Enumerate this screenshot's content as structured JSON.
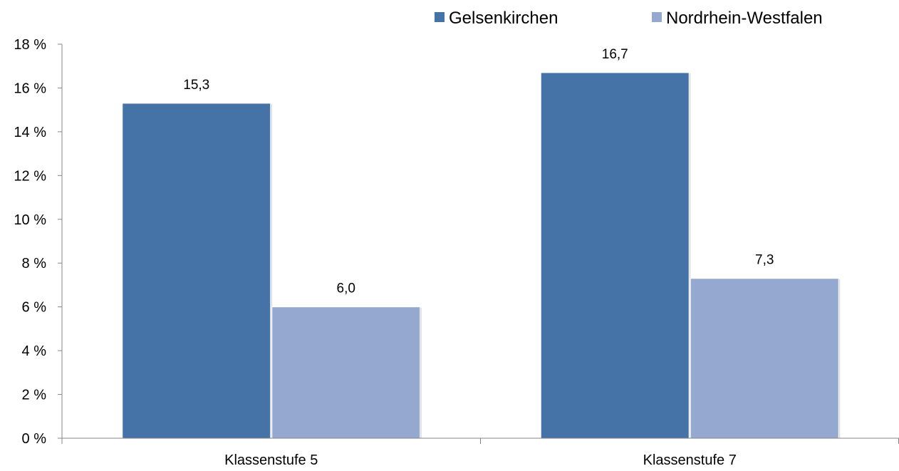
{
  "chart_data": {
    "type": "bar",
    "categories": [
      "Klassenstufe 5",
      "Klassenstufe 7"
    ],
    "series": [
      {
        "name": "Gelsenkirchen",
        "values": [
          15.3,
          16.7
        ],
        "labels": [
          "15,3",
          "16,7"
        ],
        "color": "#4673A7"
      },
      {
        "name": "Nordrhein-Westfalen",
        "values": [
          6.0,
          7.3
        ],
        "labels": [
          "6,0",
          "7,3"
        ],
        "color": "#95A9D0"
      }
    ],
    "ylim": [
      0,
      18
    ],
    "yticks": [
      0,
      2,
      4,
      6,
      8,
      10,
      12,
      14,
      16,
      18
    ],
    "ytick_labels": [
      "0 %",
      "2 %",
      "4 %",
      "6 %",
      "8 %",
      "10 %",
      "12 %",
      "14 %",
      "16 %",
      "18 %"
    ],
    "legend_position": "top-right",
    "grid": false,
    "axis_color": "#868686"
  }
}
